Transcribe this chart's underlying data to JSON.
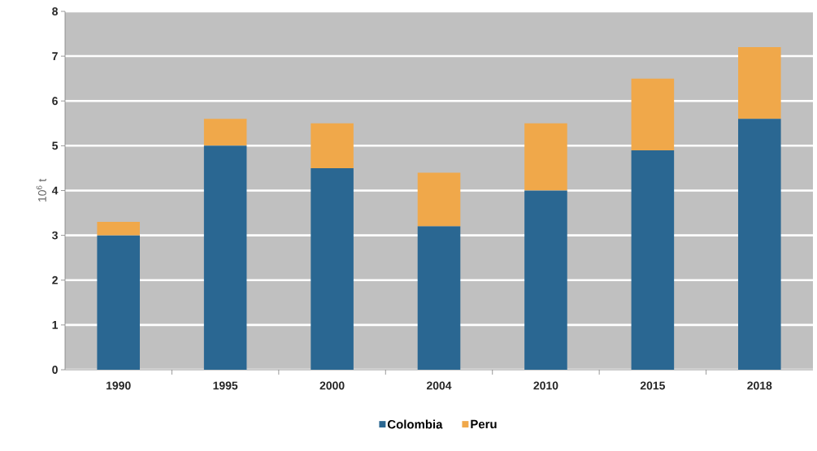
{
  "chart_data": {
    "type": "bar",
    "stacked": true,
    "ylabel": "10$^{6}$ t",
    "categories": [
      "1990",
      "1995",
      "2000",
      "2004",
      "2010",
      "2015",
      "2018"
    ],
    "series": [
      {
        "name": "Colombia",
        "color": "#2a6792",
        "values": [
          3.0,
          5.0,
          4.5,
          3.2,
          4.0,
          4.9,
          5.6
        ]
      },
      {
        "name": "Peru",
        "color": "#f0a84a",
        "values": [
          0.3,
          0.6,
          1.0,
          1.2,
          1.5,
          1.6,
          1.6
        ]
      }
    ],
    "ylim": [
      0,
      8
    ],
    "yticks": [
      0,
      1,
      2,
      3,
      4,
      5,
      6,
      7,
      8
    ],
    "grid": "y",
    "legend": "bottom"
  }
}
